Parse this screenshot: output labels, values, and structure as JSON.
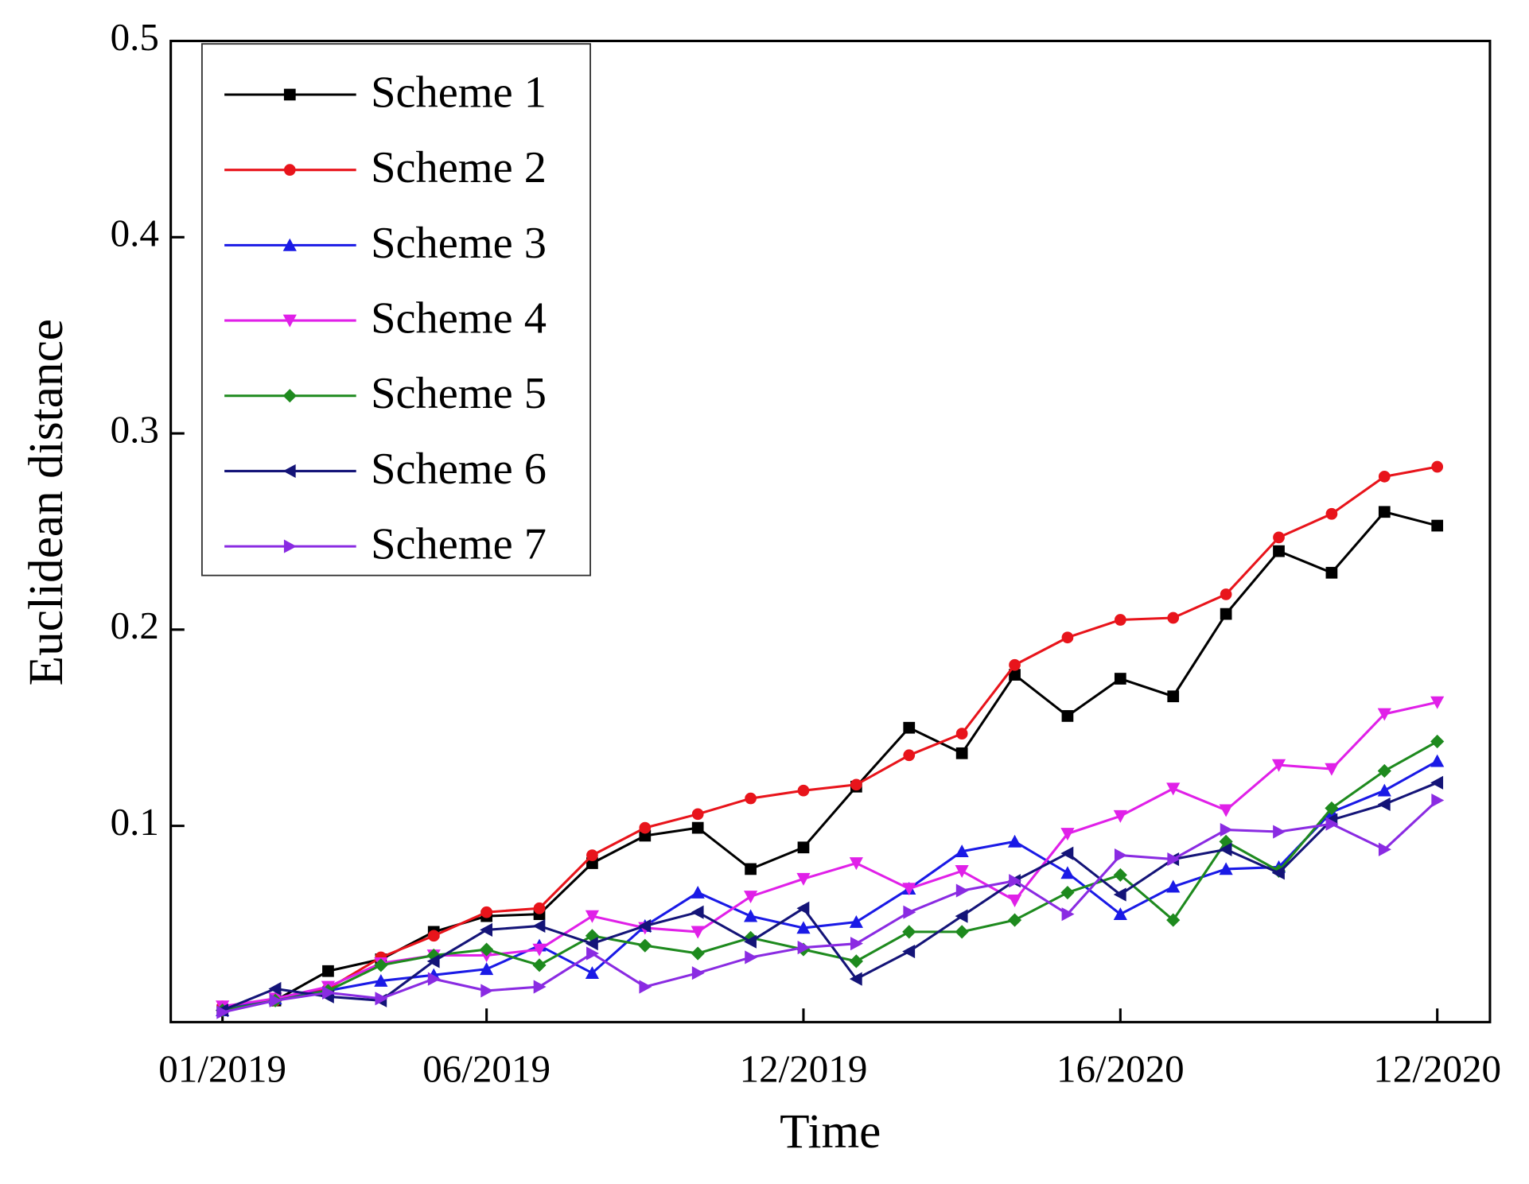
{
  "chart_data": {
    "type": "line",
    "x_label": "Time",
    "y_label": "Euclidean distance",
    "categories": [
      "01/2019",
      null,
      null,
      null,
      null,
      "06/2019",
      null,
      null,
      null,
      null,
      null,
      "12/2019",
      null,
      null,
      null,
      null,
      null,
      "16/2020",
      null,
      null,
      null,
      null,
      null,
      "12/2020"
    ],
    "ylim": [
      0,
      0.5
    ],
    "yticks": [
      0.1,
      0.2,
      0.3,
      0.4,
      0.5
    ],
    "legend": "upper left",
    "series": [
      {
        "name": "Scheme 1",
        "color": "#000000",
        "marker": "square",
        "values": [
          0.006,
          0.011,
          0.026,
          0.032,
          0.046,
          0.054,
          0.055,
          0.081,
          0.095,
          0.099,
          0.078,
          0.089,
          0.12,
          0.15,
          0.137,
          0.177,
          0.156,
          0.175,
          0.166,
          0.208,
          0.24,
          0.229,
          0.26,
          0.253
        ]
      },
      {
        "name": "Scheme 2",
        "color": "#e8141b",
        "marker": "circle",
        "values": [
          0.008,
          0.011,
          0.017,
          0.033,
          0.044,
          0.056,
          0.058,
          0.085,
          0.099,
          0.106,
          0.114,
          0.118,
          0.121,
          0.136,
          0.147,
          0.182,
          0.196,
          0.205,
          0.206,
          0.218,
          0.247,
          0.259,
          0.278,
          0.283
        ]
      },
      {
        "name": "Scheme 3",
        "color": "#1a1ae6",
        "marker": "triangle-up",
        "values": [
          0.006,
          0.012,
          0.016,
          0.021,
          0.024,
          0.027,
          0.039,
          0.025,
          0.049,
          0.066,
          0.054,
          0.048,
          0.051,
          0.068,
          0.087,
          0.092,
          0.076,
          0.055,
          0.069,
          0.078,
          0.079,
          0.107,
          0.118,
          0.133
        ]
      },
      {
        "name": "Scheme 4",
        "color": "#e020e8",
        "marker": "triangle-down",
        "values": [
          0.008,
          0.012,
          0.018,
          0.03,
          0.034,
          0.034,
          0.037,
          0.054,
          0.048,
          0.046,
          0.064,
          0.073,
          0.081,
          0.068,
          0.077,
          0.062,
          0.096,
          0.105,
          0.119,
          0.108,
          0.131,
          0.129,
          0.157,
          0.163
        ]
      },
      {
        "name": "Scheme 5",
        "color": "#1e8a1e",
        "marker": "diamond",
        "values": [
          0.006,
          0.011,
          0.016,
          0.029,
          0.034,
          0.037,
          0.029,
          0.044,
          0.039,
          0.035,
          0.043,
          0.037,
          0.031,
          0.046,
          0.046,
          0.052,
          0.066,
          0.075,
          0.052,
          0.092,
          0.077,
          0.109,
          0.128,
          0.143
        ]
      },
      {
        "name": "Scheme 6",
        "color": "#141478",
        "marker": "triangle-left",
        "values": [
          0.006,
          0.017,
          0.013,
          0.011,
          0.031,
          0.047,
          0.049,
          0.04,
          0.049,
          0.056,
          0.041,
          0.058,
          0.022,
          0.036,
          0.054,
          0.072,
          0.086,
          0.065,
          0.083,
          0.088,
          0.076,
          0.103,
          0.111,
          0.122
        ]
      },
      {
        "name": "Scheme 7",
        "color": "#8a2be2",
        "marker": "triangle-right",
        "values": [
          0.005,
          0.011,
          0.015,
          0.012,
          0.022,
          0.016,
          0.018,
          0.035,
          0.018,
          0.025,
          0.033,
          0.038,
          0.04,
          0.056,
          0.067,
          0.072,
          0.055,
          0.085,
          0.083,
          0.098,
          0.097,
          0.101,
          0.088,
          0.113
        ]
      }
    ]
  }
}
